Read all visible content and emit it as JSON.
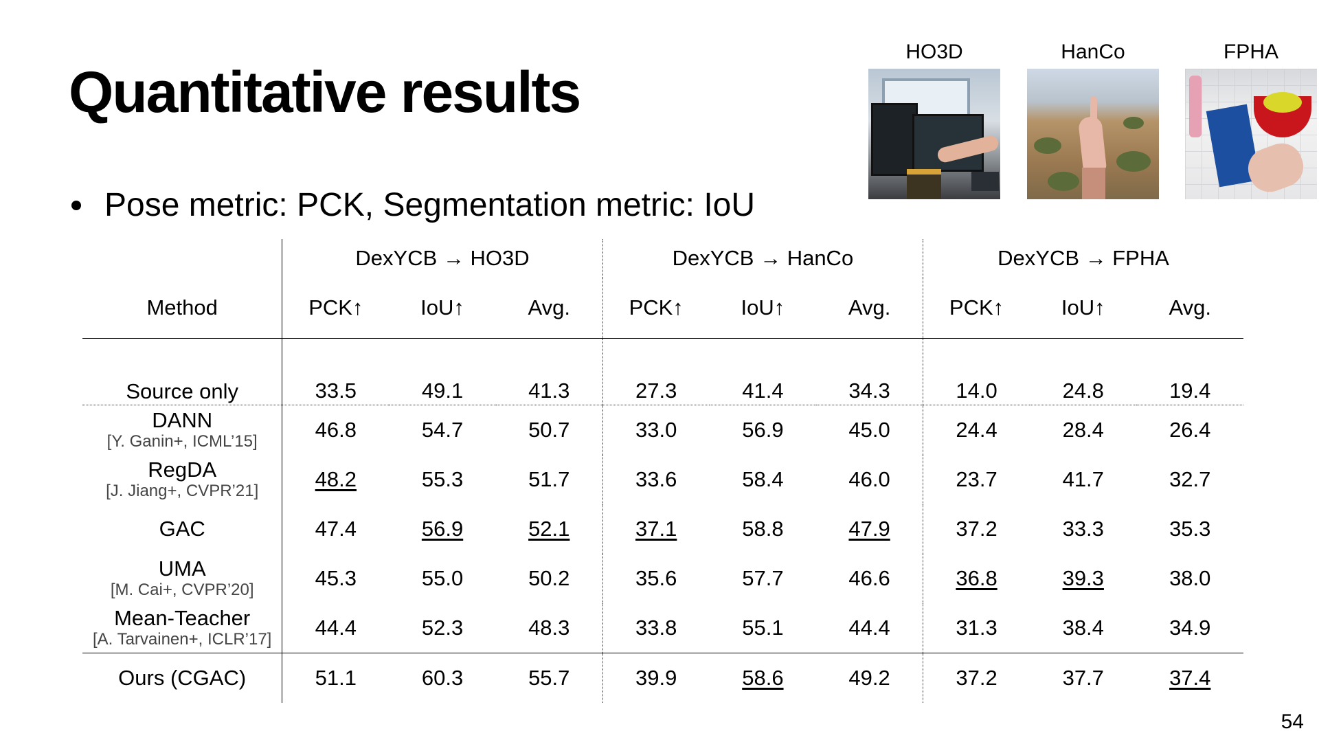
{
  "slide": {
    "title": "Quantitative results",
    "bullet": "Pose metric: PCK, Segmentation metric: IoU",
    "page_number": "54"
  },
  "datasets": [
    "HO3D",
    "HanCo",
    "FPHA"
  ],
  "table": {
    "method_header": "Method",
    "groups": [
      "DexYCB → HO3D",
      "DexYCB → HanCo",
      "DexYCB → FPHA"
    ],
    "columns": [
      "PCK↑",
      "IoU↑",
      "Avg.",
      "PCK↑",
      "IoU↑",
      "Avg.",
      "PCK↑",
      "IoU↑",
      "Avg."
    ],
    "rows": [
      {
        "name": "Source only",
        "cite": "",
        "values": [
          "33.5",
          "49.1",
          "41.3",
          "27.3",
          "41.4",
          "34.3",
          "14.0",
          "24.8",
          "19.4"
        ],
        "bold": [],
        "underline": []
      },
      {
        "name": "DANN",
        "cite": "[Y. Ganin+, ICML’15]",
        "values": [
          "46.8",
          "54.7",
          "50.7",
          "33.0",
          "56.9",
          "45.0",
          "24.4",
          "28.4",
          "26.4"
        ],
        "bold": [],
        "underline": []
      },
      {
        "name": "RegDA",
        "cite": "[J. Jiang+, CVPR’21]",
        "values": [
          "48.2",
          "55.3",
          "51.7",
          "33.6",
          "58.4",
          "46.0",
          "23.7",
          "41.7",
          "32.7"
        ],
        "bold": [
          7
        ],
        "underline": [
          0
        ]
      },
      {
        "name": "GAC",
        "cite": "",
        "values": [
          "47.4",
          "56.9",
          "52.1",
          "37.1",
          "58.8",
          "47.9",
          "37.2",
          "33.3",
          "35.3"
        ],
        "bold": [
          4,
          6
        ],
        "underline": [
          1,
          2,
          3,
          5
        ]
      },
      {
        "name": "UMA",
        "cite": "[M. Cai+, CVPR’20]",
        "values": [
          "45.3",
          "55.0",
          "50.2",
          "35.6",
          "57.7",
          "46.6",
          "36.8",
          "39.3",
          "38.0"
        ],
        "bold": [
          8
        ],
        "underline": [
          6,
          7
        ]
      },
      {
        "name": "Mean-Teacher",
        "cite": "[A. Tarvainen+, ICLR’17]",
        "values": [
          "44.4",
          "52.3",
          "48.3",
          "33.8",
          "55.1",
          "44.4",
          "31.3",
          "38.4",
          "34.9"
        ],
        "bold": [],
        "underline": []
      },
      {
        "name": "Ours (CGAC)",
        "cite": "",
        "values": [
          "51.1",
          "60.3",
          "55.7",
          "39.9",
          "58.6",
          "49.2",
          "37.2",
          "37.7",
          "37.4"
        ],
        "bold": [
          0,
          1,
          2,
          3,
          5,
          6
        ],
        "underline": [
          4,
          8
        ]
      }
    ]
  }
}
